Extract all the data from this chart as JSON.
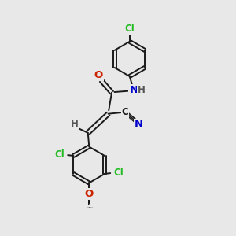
{
  "background_color": "#e8e8e8",
  "bond_color": "#1a1a1a",
  "atom_colors": {
    "Cl": "#22bb22",
    "O": "#cc2200",
    "N": "#0000cc",
    "C": "#1a1a1a",
    "H": "#555555"
  },
  "figsize": [
    3.0,
    3.0
  ],
  "dpi": 100
}
